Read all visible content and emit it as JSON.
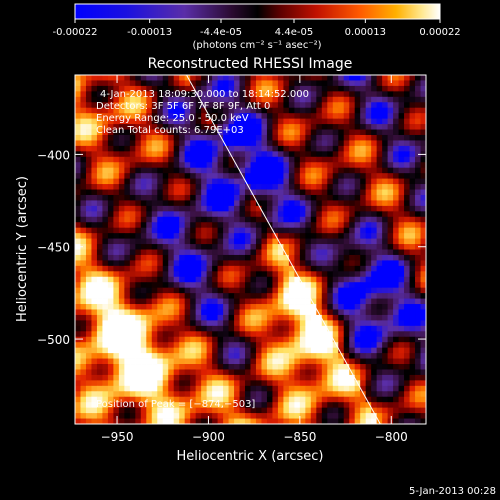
{
  "colorbar": {
    "tick_labels": [
      "-0.00022",
      "-0.00013",
      "-4.4e-05",
      "4.4e-05",
      "0.00013",
      "0.00022"
    ],
    "tick_values": [
      -0.00022,
      -0.00013,
      -4.4e-05,
      4.4e-05,
      0.00013,
      0.00022
    ],
    "range": [
      -0.00022,
      0.00022
    ],
    "unit_label": "(photons cm⁻² s⁻¹ asec⁻²)"
  },
  "chart_data": {
    "type": "heatmap",
    "title": "Reconstructed RHESSI Image",
    "xlabel": "Heliocentric X (arcsec)",
    "ylabel": "Heliocentric Y (arcsec)",
    "xlim": [
      -973,
      -781
    ],
    "ylim": [
      -546,
      -357
    ],
    "x_ticks": [
      -950,
      -900,
      -850,
      -800
    ],
    "y_ticks": [
      -400,
      -450,
      -500
    ],
    "x_tick_labels": [
      "−950",
      "−900",
      "−850",
      "−800"
    ],
    "y_tick_labels": [
      "−400",
      "−450",
      "−500"
    ],
    "limb_line": [
      [
        -912,
        -357
      ],
      [
        -806,
        -546
      ]
    ],
    "peak": [
      -874,
      -503
    ],
    "annotations": [
      "4-Jan-2013 18:09:30.000 to 18:14:52.000",
      "Detectors: 3F 5F 6F 7F 8F 9F, Att 0",
      "Energy Range: 25.0 - 50.0 keV",
      "Clean     Total counts: 6.79E+03"
    ],
    "peak_label": "Position of Peak = [−874,−503]"
  },
  "footer": {
    "date": "5-Jan-2013 00:28"
  },
  "colors": {
    "background": "#000000",
    "colormap": [
      "#0000ff",
      "#5a2ea8",
      "#3a1040",
      "#000000",
      "#7a0000",
      "#e02000",
      "#ff8000",
      "#ffe060",
      "#ffffff"
    ]
  }
}
